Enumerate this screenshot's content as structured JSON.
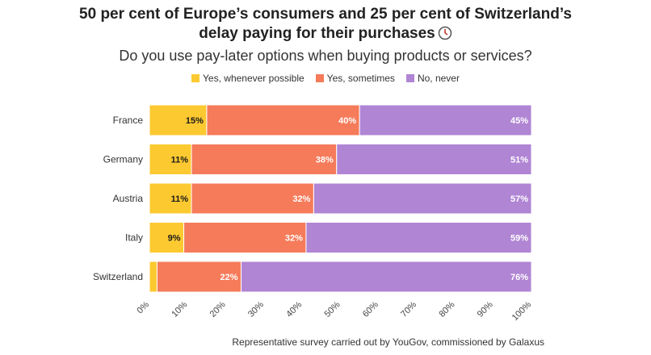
{
  "title_line1": "50 per cent of Europe’s consumers and 25 per cent of Switzerland’s",
  "title_line2": "delay paying for their purchases",
  "title_icon": "clock-icon",
  "subtitle": "Do you use pay-later options when buying products or services?",
  "source": "Representative survey carried out by YouGov, commissioned by Galaxus",
  "colors": {
    "yes_whenever": "#FCC931",
    "yes_sometimes": "#F57B5A",
    "no_never": "#B085D4"
  },
  "chart_data": {
    "type": "bar",
    "orientation": "horizontal",
    "stacked": true,
    "categories": [
      "France",
      "Germany",
      "Austria",
      "Italy",
      "Switzerland"
    ],
    "series": [
      {
        "name": "Yes, whenever possible",
        "values": [
          15,
          11,
          11,
          9,
          2
        ],
        "labels": [
          "15%",
          "11%",
          "11%",
          "9%",
          ""
        ]
      },
      {
        "name": "Yes, sometimes",
        "values": [
          40,
          38,
          32,
          32,
          22
        ],
        "labels": [
          "40%",
          "38%",
          "32%",
          "32%",
          "22%"
        ]
      },
      {
        "name": "No, never",
        "values": [
          45,
          51,
          57,
          59,
          76
        ],
        "labels": [
          "45%",
          "51%",
          "57%",
          "59%",
          "76%"
        ]
      }
    ],
    "x_ticks": [
      "0%",
      "10%",
      "20%",
      "30%",
      "40%",
      "50%",
      "60%",
      "70%",
      "80%",
      "90%",
      "100%"
    ],
    "xlim": [
      0,
      100
    ],
    "legend_position": "top-center",
    "grid": false
  }
}
